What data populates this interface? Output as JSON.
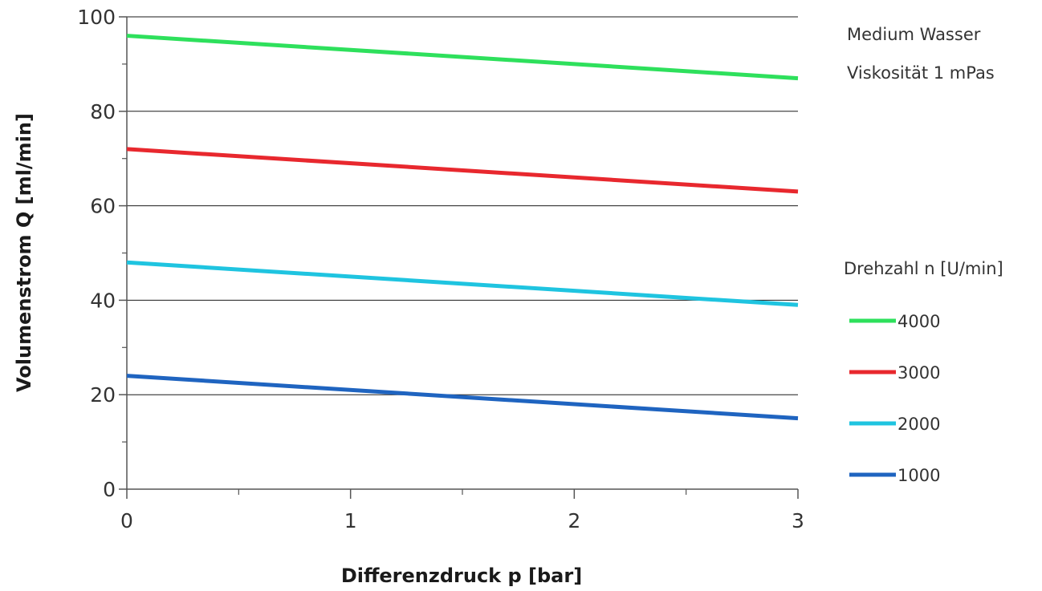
{
  "chart_data": {
    "type": "line",
    "xlabel": "Differenzdruck p [bar]",
    "ylabel": "Volumenstrom Q [ml/min]",
    "xlim": [
      0,
      3
    ],
    "ylim": [
      0,
      100
    ],
    "x_ticks": [
      "0",
      "1",
      "2",
      "3"
    ],
    "y_ticks": [
      "0",
      "20",
      "40",
      "60",
      "80",
      "100"
    ],
    "grid": "horizontal",
    "notes": [
      "Medium Wasser",
      "Viskosität 1 mPas"
    ],
    "legend": {
      "title": "Drehzahl n [U/min]",
      "placement": "right"
    },
    "x": [
      0,
      3
    ],
    "series": [
      {
        "name": "4000",
        "values": [
          96,
          87
        ],
        "color": "#2ee05c"
      },
      {
        "name": "3000",
        "values": [
          72,
          63
        ],
        "color": "#e8282e"
      },
      {
        "name": "2000",
        "values": [
          48,
          39
        ],
        "color": "#1fc4e0"
      },
      {
        "name": "1000",
        "values": [
          24,
          15
        ],
        "color": "#1f64c0"
      }
    ]
  }
}
